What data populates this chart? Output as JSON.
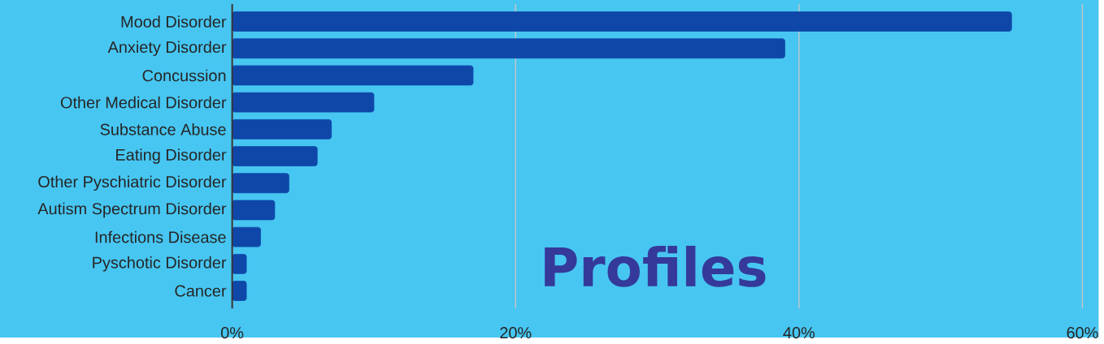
{
  "chart_data": {
    "type": "bar",
    "orientation": "horizontal",
    "categories": [
      "Mood Disorder",
      "Anxiety Disorder",
      "Concussion",
      "Other Medical Disorder",
      "Substance Abuse",
      "Eating Disorder",
      "Other Pyschiatric Disorder",
      "Autism Spectrum Disorder",
      "Infections Disease",
      "Pyschotic Disorder",
      "Cancer"
    ],
    "values": [
      55,
      39,
      17,
      10,
      7,
      6,
      4,
      3,
      2,
      1,
      1
    ],
    "color": "#0f47a8",
    "xlim": [
      0,
      60
    ],
    "xticks": [
      {
        "value": 0,
        "label": "0%"
      },
      {
        "value": 20,
        "label": "20%"
      },
      {
        "value": 40,
        "label": "40%"
      },
      {
        "value": 60,
        "label": "60%"
      }
    ],
    "grid": "x",
    "annotations": [
      "Profiles"
    ]
  }
}
